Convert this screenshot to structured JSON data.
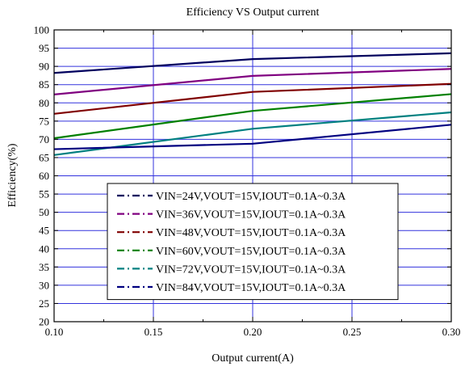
{
  "chart_data": {
    "type": "line",
    "title": "Efficiency VS Output current",
    "xlabel": "Output current(A)",
    "ylabel": "Efficiency(%)",
    "xlim": [
      0.1,
      0.3
    ],
    "ylim": [
      20,
      100
    ],
    "x_ticks": [
      "0.10",
      "0.15",
      "0.20",
      "0.25",
      "0.30"
    ],
    "y_ticks": [
      "20",
      "25",
      "30",
      "35",
      "40",
      "45",
      "50",
      "55",
      "60",
      "65",
      "70",
      "75",
      "80",
      "85",
      "90",
      "95",
      "100"
    ],
    "grid": true,
    "grid_color": "#3333dd",
    "legend_position": "center",
    "x": [
      0.1,
      0.2,
      0.3
    ],
    "series": [
      {
        "name": "VIN=24V,VOUT=15V,IOUT=0.1A~0.3A",
        "color": "#00005e",
        "values": [
          88.2,
          92.0,
          93.6
        ]
      },
      {
        "name": "VIN=36V,VOUT=15V,IOUT=0.1A~0.3A",
        "color": "#800080",
        "values": [
          82.3,
          87.4,
          89.3
        ]
      },
      {
        "name": "VIN=48V,VOUT=15V,IOUT=0.1A~0.3A",
        "color": "#800000",
        "values": [
          77.0,
          83.0,
          85.2
        ]
      },
      {
        "name": "VIN=60V,VOUT=15V,IOUT=0.1A~0.3A",
        "color": "#008000",
        "values": [
          70.3,
          77.8,
          82.4
        ]
      },
      {
        "name": "VIN=72V,VOUT=15V,IOUT=0.1A~0.3A",
        "color": "#008080",
        "values": [
          65.7,
          72.9,
          77.4
        ]
      },
      {
        "name": "VIN=84V,VOUT=15V,IOUT=0.1A~0.3A",
        "color": "#000080",
        "values": [
          67.3,
          68.8,
          74.0
        ]
      }
    ]
  }
}
